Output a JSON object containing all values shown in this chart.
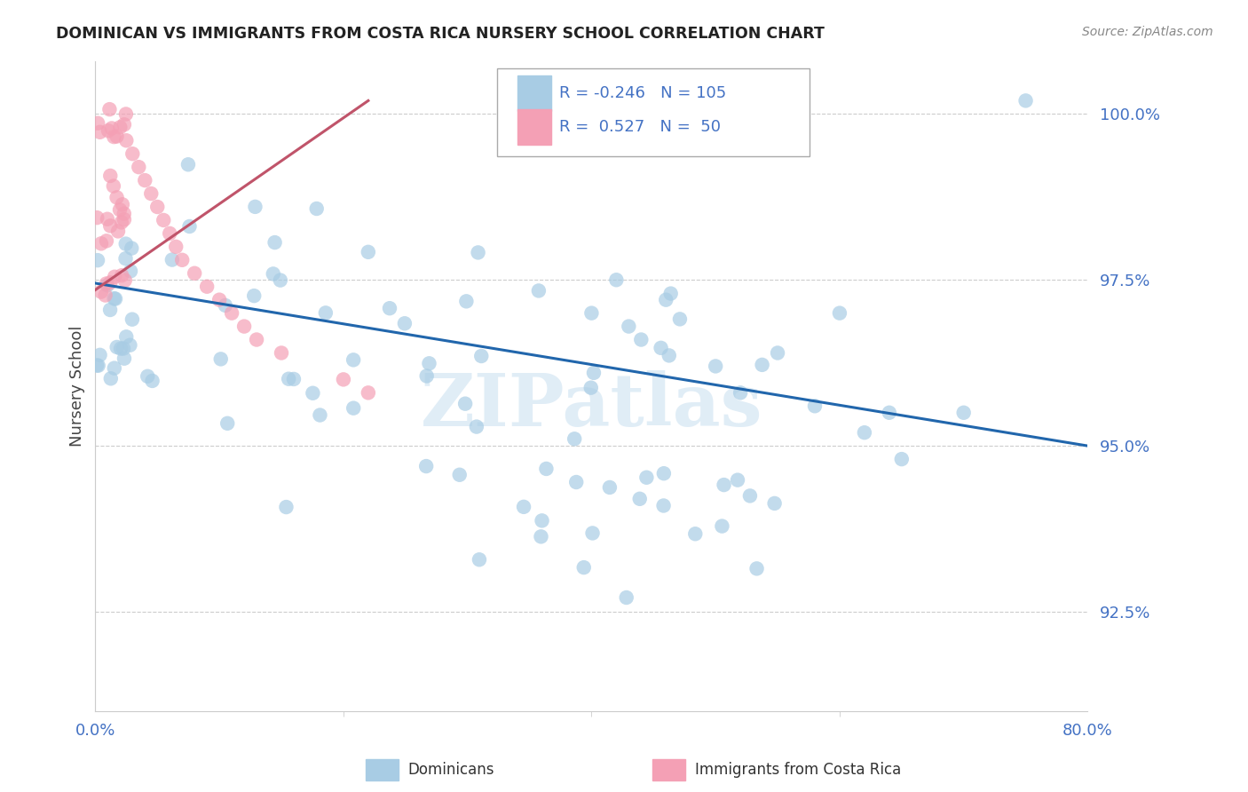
{
  "title": "DOMINICAN VS IMMIGRANTS FROM COSTA RICA NURSERY SCHOOL CORRELATION CHART",
  "source": "Source: ZipAtlas.com",
  "ylabel": "Nursery School",
  "legend_blue_R": "-0.246",
  "legend_blue_N": "105",
  "legend_pink_R": "0.527",
  "legend_pink_N": "50",
  "legend_blue_label": "Dominicans",
  "legend_pink_label": "Immigrants from Costa Rica",
  "blue_color": "#a8cce4",
  "pink_color": "#f4a0b5",
  "blue_line_color": "#2166ac",
  "pink_line_color": "#c0546a",
  "tick_color": "#4472c4",
  "grid_color": "#cccccc",
  "watermark": "ZIPatlas",
  "ytick_values": [
    0.925,
    0.95,
    0.975,
    1.0
  ],
  "ytick_labels": [
    "92.5%",
    "95.0%",
    "97.5%",
    "100.0%"
  ],
  "xlim": [
    0.0,
    0.8
  ],
  "ylim": [
    0.91,
    1.008
  ],
  "blue_trend_x0": 0.0,
  "blue_trend_y0": 0.9745,
  "blue_trend_x1": 0.8,
  "blue_trend_y1": 0.95,
  "pink_trend_x0": 0.0,
  "pink_trend_y0": 0.9735,
  "pink_trend_x1": 0.22,
  "pink_trend_y1": 1.002
}
